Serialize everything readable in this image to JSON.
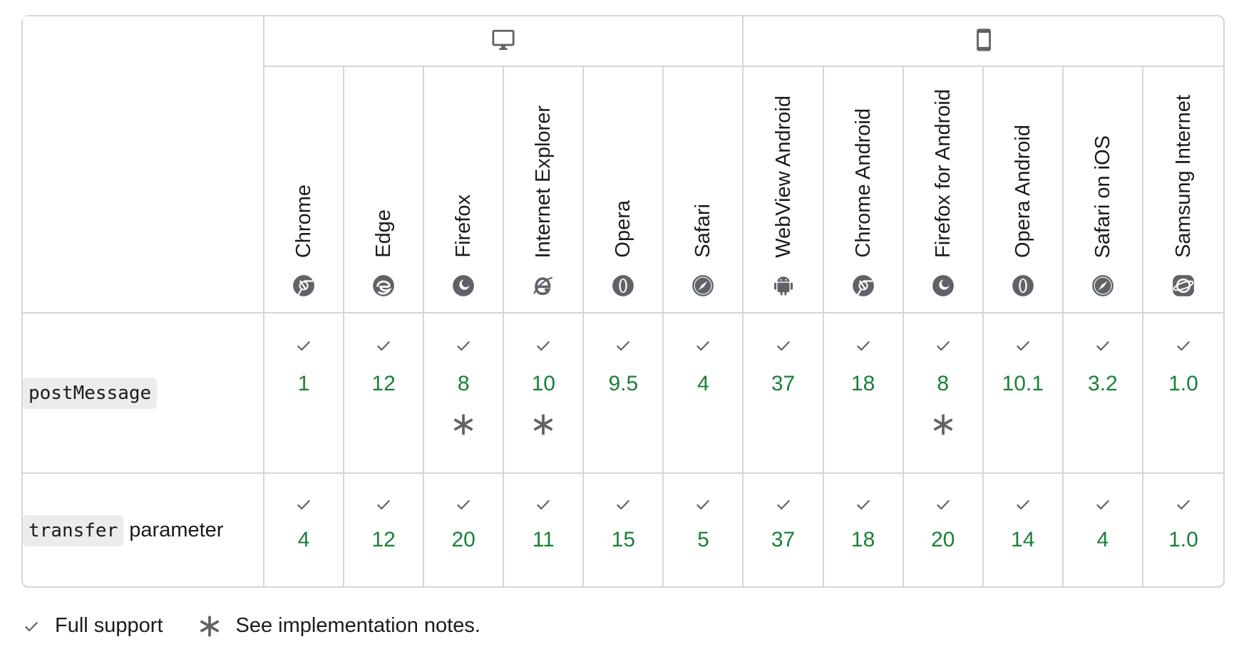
{
  "platforms": [
    {
      "name": "desktop-icon"
    },
    {
      "name": "mobile-icon"
    }
  ],
  "browsers": [
    {
      "label": "Chrome",
      "icon": "chrome-icon"
    },
    {
      "label": "Edge",
      "icon": "edge-icon"
    },
    {
      "label": "Firefox",
      "icon": "firefox-icon"
    },
    {
      "label": "Internet Explorer",
      "icon": "internet-explorer-icon"
    },
    {
      "label": "Opera",
      "icon": "opera-icon"
    },
    {
      "label": "Safari",
      "icon": "safari-icon"
    },
    {
      "label": "WebView Android",
      "icon": "android-icon"
    },
    {
      "label": "Chrome Android",
      "icon": "chrome-icon"
    },
    {
      "label": "Firefox for Android",
      "icon": "firefox-icon"
    },
    {
      "label": "Opera Android",
      "icon": "opera-icon"
    },
    {
      "label": "Safari on iOS",
      "icon": "safari-icon"
    },
    {
      "label": "Samsung Internet",
      "icon": "samsung-internet-icon"
    }
  ],
  "features": [
    {
      "code": "postMessage",
      "suffix": "",
      "versions": [
        "1",
        "12",
        "8",
        "10",
        "9.5",
        "4",
        "37",
        "18",
        "8",
        "10.1",
        "3.2",
        "1.0"
      ],
      "notes": [
        false,
        false,
        true,
        true,
        false,
        false,
        false,
        false,
        true,
        false,
        false,
        false
      ]
    },
    {
      "code": "transfer",
      "suffix": " parameter",
      "versions": [
        "4",
        "12",
        "20",
        "11",
        "15",
        "5",
        "37",
        "18",
        "20",
        "14",
        "4",
        "1.0"
      ],
      "notes": [
        false,
        false,
        false,
        false,
        false,
        false,
        false,
        false,
        false,
        false,
        false,
        false
      ]
    }
  ],
  "legend": {
    "full_support": "Full support",
    "notes": "See implementation notes."
  },
  "colors": {
    "version_green": "#188038",
    "border": "#d6d6d6",
    "icon_gray": "#5f6368"
  }
}
